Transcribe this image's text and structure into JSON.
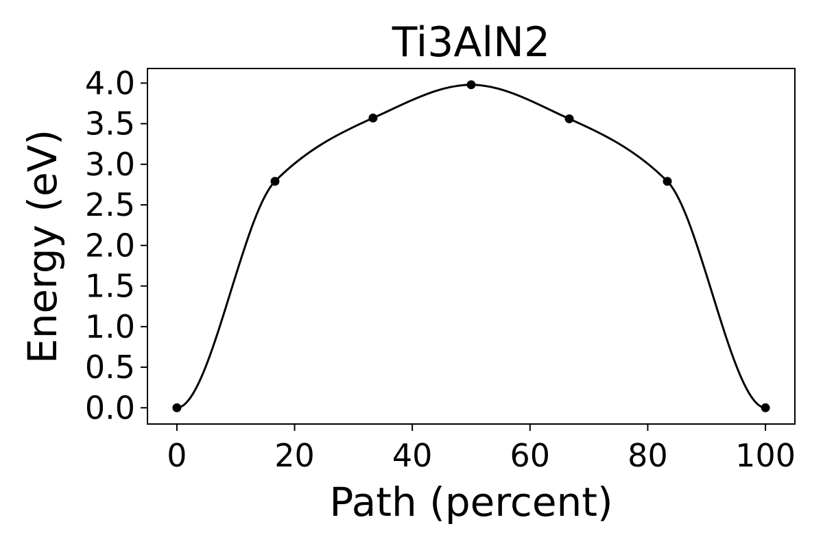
{
  "chart_data": {
    "type": "line",
    "title": "Ti3AlN2",
    "xlabel": "Path (percent)",
    "ylabel": "Energy (eV)",
    "xlim": [
      -5,
      105
    ],
    "ylim": [
      -0.2,
      4.18
    ],
    "xticks": [
      0,
      20,
      40,
      60,
      80,
      100
    ],
    "yticks": [
      0.0,
      0.5,
      1.0,
      1.5,
      2.0,
      2.5,
      3.0,
      3.5,
      4.0
    ],
    "grid": false,
    "series": [
      {
        "color": "#000000",
        "x": [
          0,
          16.67,
          33.33,
          50,
          66.67,
          83.33,
          100
        ],
        "y": [
          0.0,
          2.79,
          3.57,
          3.98,
          3.56,
          2.79,
          0.0
        ]
      }
    ]
  }
}
